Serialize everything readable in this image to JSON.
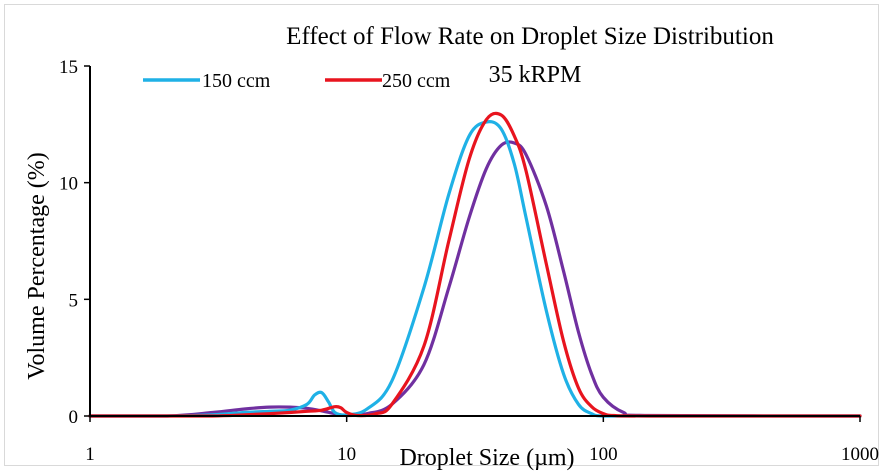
{
  "chart_data": {
    "type": "line",
    "title": "Effect of Flow Rate on Droplet Size Distribution",
    "subtitle": "35 kRPM",
    "xlabel": "Droplet Size (µm)",
    "ylabel": "Volume Percentage (%)",
    "x_scale": "log",
    "xlim": [
      1,
      1000
    ],
    "ylim": [
      0,
      15
    ],
    "x_ticks": [
      1,
      10,
      100,
      1000
    ],
    "y_ticks": [
      0,
      5,
      10,
      15
    ],
    "x_tick_labels": [
      "1",
      "10",
      "100",
      "1000"
    ],
    "y_tick_labels": [
      "0",
      "5",
      "10",
      "15"
    ],
    "grid": false,
    "legend_position": "top-left",
    "series": [
      {
        "name": "150 ccm",
        "color": "#1fb1e6",
        "x": [
          1,
          2,
          3,
          4,
          5,
          6,
          7,
          7.5,
          8,
          8.5,
          9,
          10,
          12,
          15,
          20,
          25,
          30,
          35,
          40,
          45,
          50,
          60,
          70,
          80,
          90,
          100,
          150,
          1000
        ],
        "y": [
          0,
          0,
          0.05,
          0.15,
          0.2,
          0.25,
          0.5,
          0.9,
          1.0,
          0.6,
          0.15,
          0.05,
          0.3,
          1.5,
          5.5,
          9.5,
          12.0,
          12.6,
          12.3,
          10.8,
          8.5,
          4.5,
          1.8,
          0.5,
          0.1,
          0,
          0,
          0
        ]
      },
      {
        "name": "250 ccm",
        "color": "#e8141e",
        "x": [
          1,
          2,
          3,
          4,
          5,
          6,
          7,
          8,
          9,
          9.5,
          10,
          11,
          13,
          15,
          20,
          25,
          30,
          35,
          40,
          45,
          50,
          60,
          70,
          80,
          90,
          100,
          110,
          150,
          1000
        ],
        "y": [
          0,
          0,
          0,
          0.05,
          0.1,
          0.15,
          0.2,
          0.25,
          0.4,
          0.35,
          0.15,
          0.02,
          0.1,
          0.5,
          3.0,
          7.5,
          11.0,
          12.7,
          12.9,
          12.0,
          10.5,
          6.5,
          3.2,
          1.2,
          0.4,
          0.1,
          0.02,
          0,
          0
        ]
      },
      {
        "name": "",
        "color": "#7030a0",
        "x": [
          1,
          2,
          3,
          4,
          5,
          6,
          7,
          8,
          9,
          10,
          12,
          15,
          20,
          25,
          30,
          35,
          40,
          45,
          50,
          60,
          70,
          80,
          90,
          100,
          120,
          150,
          1000
        ],
        "y": [
          0,
          0,
          0.15,
          0.3,
          0.38,
          0.38,
          0.33,
          0.22,
          0.1,
          0.02,
          0.1,
          0.5,
          2.2,
          5.5,
          8.5,
          10.6,
          11.6,
          11.7,
          11.2,
          9.0,
          6.2,
          3.6,
          1.8,
          0.8,
          0.15,
          0.02,
          0
        ]
      }
    ]
  }
}
